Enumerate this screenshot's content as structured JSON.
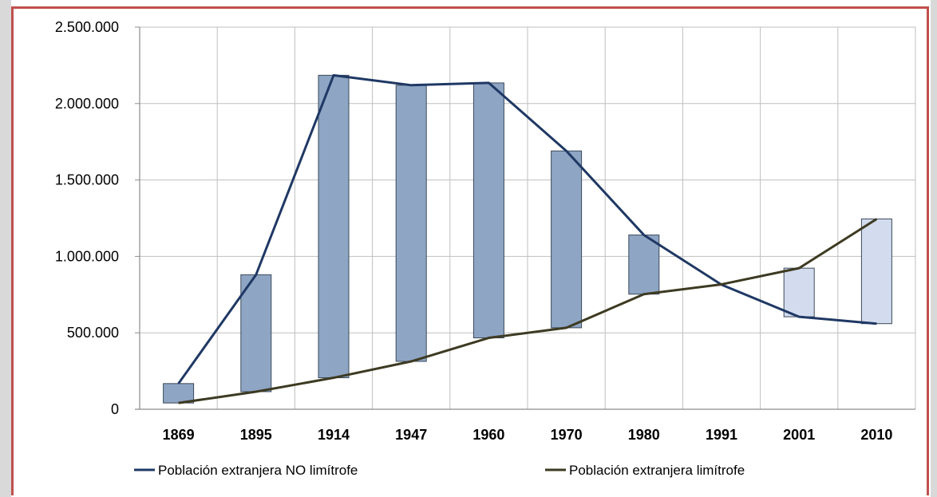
{
  "chart_data": {
    "type": "bar",
    "categories": [
      "1869",
      "1895",
      "1914",
      "1947",
      "1960",
      "1970",
      "1980",
      "1991",
      "2001",
      "2010"
    ],
    "series": [
      {
        "name": "Población extranjera NO limítrofe",
        "type": "line",
        "color": "#1f3864",
        "values": [
          168000,
          880000,
          2185000,
          2120000,
          2135000,
          1690000,
          1140000,
          815000,
          605000,
          560000
        ]
      },
      {
        "name": "Población extranjera limítrofe",
        "type": "line",
        "color": "#3d3a22",
        "values": [
          41000,
          115000,
          206000,
          313000,
          467000,
          533000,
          753000,
          817000,
          923000,
          1245000
        ]
      }
    ],
    "yticks": [
      "0",
      "500.000",
      "1.000.000",
      "1.500.000",
      "2.000.000",
      "2.500.000"
    ],
    "ylim": [
      0,
      2500000
    ],
    "grid": true,
    "legend_position": "bottom",
    "colors": {
      "bar_dark": "#8ea5c4",
      "bar_light": "#d3dbee",
      "bar_border": "#3b4a5a",
      "grid": "#bfbfbf",
      "frame_border": "#c0504d"
    }
  }
}
